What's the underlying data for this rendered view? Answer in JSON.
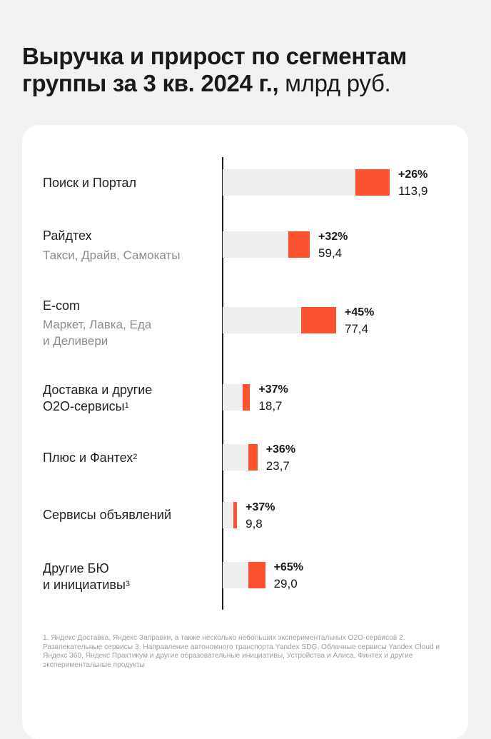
{
  "header": {
    "title_bold": "Выручка и прирост по сегментам группы за 3 кв. 2024 г.,",
    "title_light": "млрд руб."
  },
  "chart_data": {
    "type": "bar",
    "orientation": "horizontal",
    "title": "Выручка и прирост по сегментам группы за 3 кв. 2024 г., млрд руб.",
    "categories": [
      "Поиск и Портал",
      "Райдтех",
      "E-com",
      "Доставка и другие О2О-сервисы¹",
      "Плюс и Фантех²",
      "Сервисы объявлений",
      "Другие БЮ и инициативы³"
    ],
    "series": [
      {
        "name": "Выручка, млрд руб.",
        "values": [
          113.9,
          59.4,
          77.4,
          18.7,
          23.7,
          9.8,
          29.0
        ]
      },
      {
        "name": "Прирост, %",
        "values": [
          26,
          32,
          45,
          37,
          36,
          37,
          65
        ]
      }
    ],
    "xlim": [
      0,
      113.9
    ],
    "colors": {
      "increment": "#fc5230",
      "base": "#efefef",
      "axis": "#222222"
    }
  },
  "segments": [
    {
      "label": "Поиск и Портал",
      "sup": "",
      "sub": [],
      "value": 113.9,
      "growth": 26,
      "growth_label": "+26%",
      "value_label": "113,9"
    },
    {
      "label": "Райдтех",
      "sup": "",
      "sub": [
        "Такси, Драйв, Самокаты"
      ],
      "value": 59.4,
      "growth": 32,
      "growth_label": "+32%",
      "value_label": "59,4"
    },
    {
      "label": "E-com",
      "sup": "",
      "sub": [
        "Маркет, Лавка, Еда",
        "и Деливери"
      ],
      "value": 77.4,
      "growth": 45,
      "growth_label": "+45%",
      "value_label": "77,4"
    },
    {
      "label": "Доставка и другие",
      "label2": "О2О-сервисы",
      "sup": "1",
      "sub": [],
      "value": 18.7,
      "growth": 37,
      "growth_label": "+37%",
      "value_label": "18,7"
    },
    {
      "label": "Плюс и Фантех",
      "sup": "2",
      "sub": [],
      "value": 23.7,
      "growth": 36,
      "growth_label": "+36%",
      "value_label": "23,7"
    },
    {
      "label": "Сервисы объявлений",
      "sup": "",
      "sub": [],
      "value": 9.8,
      "growth": 37,
      "growth_label": "+37%",
      "value_label": "9,8"
    },
    {
      "label": "Другие БЮ",
      "label2": "и инициативы",
      "sup": "3",
      "sub": [],
      "value": 29.0,
      "growth": 65,
      "growth_label": "+65%",
      "value_label": "29,0"
    }
  ],
  "footnote": "1. Яндекс Доставка, Яндекс Заправки, а также несколько небольших экспериментальных О2О-сервисов 2. Развлекательные сервисы 3. Направление автономного транспорта Yandex SDG, Облачные сервисы Yandex Cloud и Яндекс 360, Яндекс Практикум и другие образовательные инициативы, Устройства и Алиса, Финтех и другие экспериментальные продукты"
}
